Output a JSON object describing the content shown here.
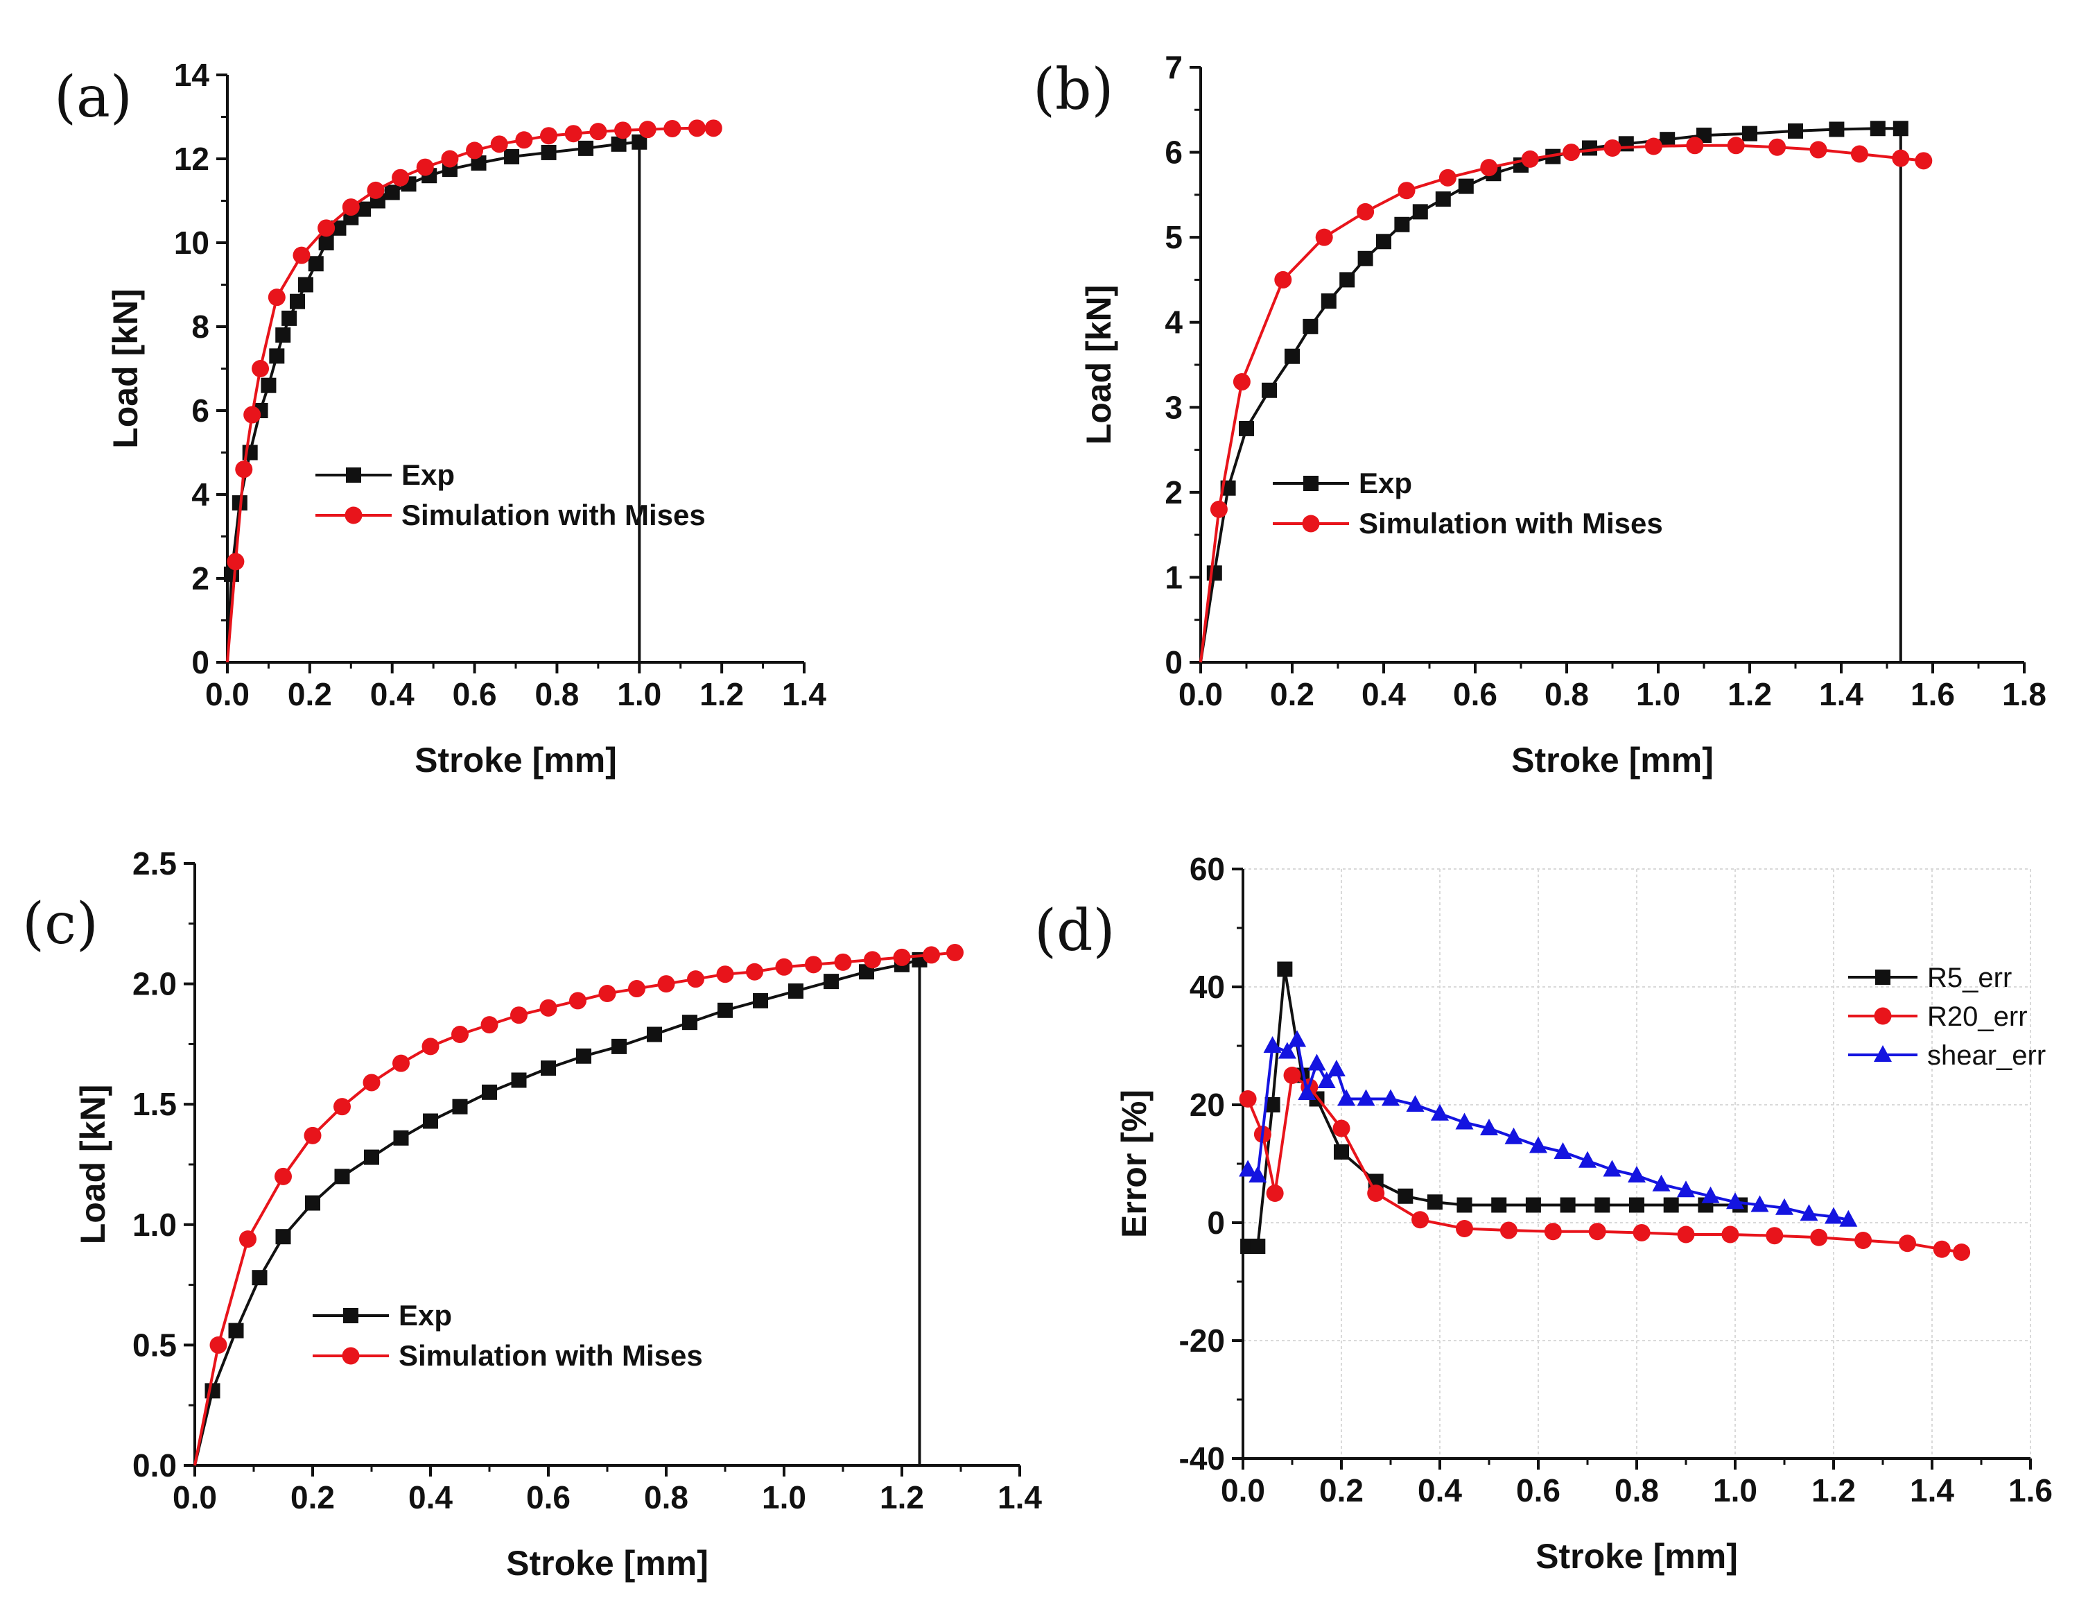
{
  "chart_data": [
    {
      "panel_label": "(a)",
      "type": "line",
      "xlabel": "Stroke [mm]",
      "ylabel": "Load [kN]",
      "xlim": [
        0.0,
        1.4
      ],
      "ylim": [
        0,
        14
      ],
      "xticks": [
        0.0,
        0.2,
        0.4,
        0.6,
        0.8,
        1.0,
        1.2,
        1.4
      ],
      "yticks": [
        0,
        2,
        4,
        6,
        8,
        10,
        12,
        14
      ],
      "xtick_labels": [
        "0.0",
        "0.2",
        "0.4",
        "0.6",
        "0.8",
        "1.0",
        "1.2",
        "1.4"
      ],
      "ytick_labels": [
        "0",
        "2",
        "4",
        "6",
        "8",
        "10",
        "12",
        "14"
      ],
      "grid": false,
      "legend_position": "middle-left",
      "series": [
        {
          "name": "Exp",
          "color": "#111111",
          "marker": "square",
          "drop_to_zero": true,
          "x": [
            0.0,
            0.01,
            0.03,
            0.055,
            0.08,
            0.1,
            0.12,
            0.135,
            0.15,
            0.17,
            0.19,
            0.215,
            0.24,
            0.27,
            0.3,
            0.33,
            0.365,
            0.4,
            0.44,
            0.49,
            0.54,
            0.61,
            0.69,
            0.78,
            0.87,
            0.95,
            1.0
          ],
          "y": [
            0.0,
            2.1,
            3.8,
            5.0,
            6.0,
            6.6,
            7.3,
            7.8,
            8.2,
            8.6,
            9.0,
            9.5,
            10.0,
            10.35,
            10.6,
            10.8,
            11.0,
            11.2,
            11.4,
            11.6,
            11.75,
            11.9,
            12.05,
            12.15,
            12.25,
            12.35,
            12.4
          ]
        },
        {
          "name": "Simulation with Mises",
          "color": "#e8141b",
          "marker": "circle",
          "x": [
            0.0,
            0.02,
            0.04,
            0.06,
            0.08,
            0.12,
            0.18,
            0.24,
            0.3,
            0.36,
            0.42,
            0.48,
            0.54,
            0.6,
            0.66,
            0.72,
            0.78,
            0.84,
            0.9,
            0.96,
            1.02,
            1.08,
            1.14,
            1.18
          ],
          "y": [
            0.0,
            2.4,
            4.6,
            5.9,
            7.0,
            8.7,
            9.7,
            10.35,
            10.85,
            11.25,
            11.55,
            11.8,
            12.0,
            12.2,
            12.35,
            12.45,
            12.55,
            12.6,
            12.65,
            12.68,
            12.7,
            12.72,
            12.73,
            12.73
          ]
        }
      ]
    },
    {
      "panel_label": "(b)",
      "type": "line",
      "xlabel": "Stroke [mm]",
      "ylabel": "Load [kN]",
      "xlim": [
        0.0,
        1.8
      ],
      "ylim": [
        0,
        7
      ],
      "xticks": [
        0.0,
        0.2,
        0.4,
        0.6,
        0.8,
        1.0,
        1.2,
        1.4,
        1.6,
        1.8
      ],
      "yticks": [
        0,
        1,
        2,
        3,
        4,
        5,
        6,
        7
      ],
      "xtick_labels": [
        "0.0",
        "0.2",
        "0.4",
        "0.6",
        "0.8",
        "1.0",
        "1.2",
        "1.4",
        "1.6",
        "1.8"
      ],
      "ytick_labels": [
        "0",
        "1",
        "2",
        "3",
        "4",
        "5",
        "6",
        "7"
      ],
      "grid": false,
      "legend_position": "middle-left",
      "series": [
        {
          "name": "Exp",
          "color": "#111111",
          "marker": "square",
          "drop_to_zero": true,
          "x": [
            0.0,
            0.03,
            0.06,
            0.1,
            0.15,
            0.2,
            0.24,
            0.28,
            0.32,
            0.36,
            0.4,
            0.44,
            0.48,
            0.53,
            0.58,
            0.64,
            0.7,
            0.77,
            0.85,
            0.93,
            1.02,
            1.1,
            1.2,
            1.3,
            1.39,
            1.48,
            1.53
          ],
          "y": [
            0.0,
            1.05,
            2.05,
            2.75,
            3.2,
            3.6,
            3.95,
            4.25,
            4.5,
            4.75,
            4.95,
            5.15,
            5.3,
            5.45,
            5.6,
            5.75,
            5.85,
            5.95,
            6.05,
            6.1,
            6.15,
            6.2,
            6.22,
            6.25,
            6.27,
            6.28,
            6.28
          ]
        },
        {
          "name": "Simulation with Mises",
          "color": "#e8141b",
          "marker": "circle",
          "x": [
            0.0,
            0.04,
            0.09,
            0.18,
            0.27,
            0.36,
            0.45,
            0.54,
            0.63,
            0.72,
            0.81,
            0.9,
            0.99,
            1.08,
            1.17,
            1.26,
            1.35,
            1.44,
            1.53,
            1.58
          ],
          "y": [
            0.0,
            1.8,
            3.3,
            4.5,
            5.0,
            5.3,
            5.55,
            5.7,
            5.82,
            5.92,
            6.0,
            6.05,
            6.07,
            6.08,
            6.08,
            6.06,
            6.03,
            5.98,
            5.93,
            5.9
          ]
        }
      ]
    },
    {
      "panel_label": "(c)",
      "type": "line",
      "xlabel": "Stroke [mm]",
      "ylabel": "Load [kN]",
      "xlim": [
        0.0,
        1.4
      ],
      "ylim": [
        0.0,
        2.5
      ],
      "xticks": [
        0.0,
        0.2,
        0.4,
        0.6,
        0.8,
        1.0,
        1.2,
        1.4
      ],
      "yticks": [
        0.0,
        0.5,
        1.0,
        1.5,
        2.0,
        2.5
      ],
      "xtick_labels": [
        "0.0",
        "0.2",
        "0.4",
        "0.6",
        "0.8",
        "1.0",
        "1.2",
        "1.4"
      ],
      "ytick_labels": [
        "0.0",
        "0.5",
        "1.0",
        "1.5",
        "2.0",
        "2.5"
      ],
      "grid": false,
      "legend_position": "bottom-left",
      "series": [
        {
          "name": "Exp",
          "color": "#111111",
          "marker": "square",
          "drop_to_zero": true,
          "x": [
            0.0,
            0.03,
            0.07,
            0.11,
            0.15,
            0.2,
            0.25,
            0.3,
            0.35,
            0.4,
            0.45,
            0.5,
            0.55,
            0.6,
            0.66,
            0.72,
            0.78,
            0.84,
            0.9,
            0.96,
            1.02,
            1.08,
            1.14,
            1.2,
            1.23
          ],
          "y": [
            0.0,
            0.31,
            0.56,
            0.78,
            0.95,
            1.09,
            1.2,
            1.28,
            1.36,
            1.43,
            1.49,
            1.55,
            1.6,
            1.65,
            1.7,
            1.74,
            1.79,
            1.84,
            1.89,
            1.93,
            1.97,
            2.01,
            2.05,
            2.08,
            2.1
          ]
        },
        {
          "name": "Simulation with Mises",
          "color": "#e8141b",
          "marker": "circle",
          "x": [
            0.0,
            0.04,
            0.09,
            0.15,
            0.2,
            0.25,
            0.3,
            0.35,
            0.4,
            0.45,
            0.5,
            0.55,
            0.6,
            0.65,
            0.7,
            0.75,
            0.8,
            0.85,
            0.9,
            0.95,
            1.0,
            1.05,
            1.1,
            1.15,
            1.2,
            1.25,
            1.29
          ],
          "y": [
            0.0,
            0.5,
            0.94,
            1.2,
            1.37,
            1.49,
            1.59,
            1.67,
            1.74,
            1.79,
            1.83,
            1.87,
            1.9,
            1.93,
            1.96,
            1.98,
            2.0,
            2.02,
            2.04,
            2.05,
            2.07,
            2.08,
            2.09,
            2.1,
            2.11,
            2.12,
            2.13
          ]
        }
      ]
    },
    {
      "panel_label": "(d)",
      "type": "line",
      "xlabel": "Stroke [mm]",
      "ylabel": "Error [%]",
      "xlim": [
        0.0,
        1.6
      ],
      "ylim": [
        -40,
        60
      ],
      "xticks": [
        0.0,
        0.2,
        0.4,
        0.6,
        0.8,
        1.0,
        1.2,
        1.4,
        1.6
      ],
      "yticks": [
        -40,
        -20,
        0,
        20,
        40,
        60
      ],
      "xtick_labels": [
        "0.0",
        "0.2",
        "0.4",
        "0.6",
        "0.8",
        "1.0",
        "1.2",
        "1.4",
        "1.6"
      ],
      "ytick_labels": [
        "-40",
        "-20",
        "0",
        "20",
        "40",
        "60"
      ],
      "grid": true,
      "legend_position": "top-right",
      "series": [
        {
          "name": "R5_err",
          "color": "#111111",
          "marker": "square",
          "x": [
            0.01,
            0.03,
            0.06,
            0.085,
            0.12,
            0.15,
            0.2,
            0.27,
            0.33,
            0.39,
            0.45,
            0.52,
            0.59,
            0.66,
            0.73,
            0.8,
            0.87,
            0.94,
            1.01
          ],
          "y": [
            -4,
            -4,
            20,
            43,
            25,
            21,
            12,
            7,
            4.5,
            3.5,
            3,
            3,
            3,
            3,
            3,
            3,
            3,
            3,
            3
          ]
        },
        {
          "name": "R20_err",
          "color": "#e8141b",
          "marker": "circle",
          "x": [
            0.01,
            0.04,
            0.065,
            0.1,
            0.135,
            0.2,
            0.27,
            0.36,
            0.45,
            0.54,
            0.63,
            0.72,
            0.81,
            0.9,
            0.99,
            1.08,
            1.17,
            1.26,
            1.35,
            1.42,
            1.46
          ],
          "y": [
            21,
            15,
            5,
            25,
            23,
            16,
            5,
            0.5,
            -1,
            -1.3,
            -1.5,
            -1.5,
            -1.7,
            -2,
            -2,
            -2.2,
            -2.5,
            -3,
            -3.5,
            -4.5,
            -5
          ]
        },
        {
          "name": "shear_err",
          "color": "#1414e0",
          "marker": "triangle",
          "x": [
            0.01,
            0.03,
            0.06,
            0.09,
            0.11,
            0.13,
            0.15,
            0.17,
            0.19,
            0.21,
            0.25,
            0.3,
            0.35,
            0.4,
            0.45,
            0.5,
            0.55,
            0.6,
            0.65,
            0.7,
            0.75,
            0.8,
            0.85,
            0.9,
            0.95,
            1.0,
            1.05,
            1.1,
            1.15,
            1.2,
            1.23
          ],
          "y": [
            9,
            8,
            30,
            29,
            31,
            22,
            27,
            24,
            26,
            21,
            21,
            21,
            20,
            18.5,
            17,
            16,
            14.5,
            13,
            12,
            10.5,
            9,
            8,
            6.5,
            5.5,
            4.5,
            3.5,
            3,
            2.5,
            1.5,
            1,
            0.5
          ]
        }
      ]
    }
  ]
}
